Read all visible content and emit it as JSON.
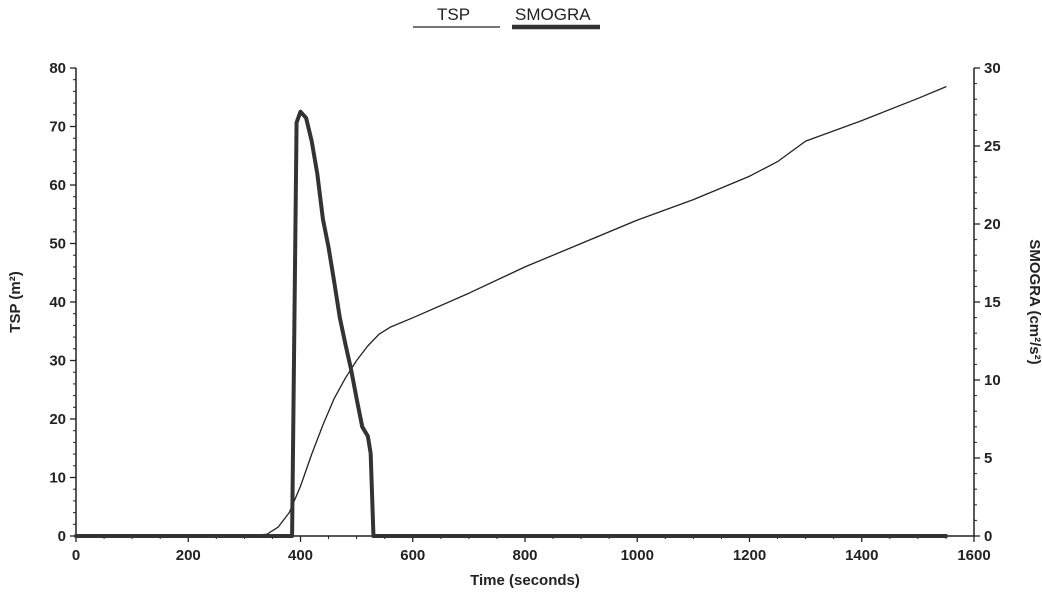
{
  "chart_data": {
    "type": "line",
    "x_axis": {
      "label": "Time (seconds)",
      "range": [
        0,
        1600
      ],
      "ticks": [
        "0",
        "200",
        "400",
        "600",
        "800",
        "1000",
        "1200",
        "1400",
        "1600"
      ]
    },
    "y_axis_left": {
      "label": "TSP (m²)",
      "range": [
        0,
        80
      ],
      "ticks": [
        "0",
        "10",
        "20",
        "30",
        "40",
        "50",
        "60",
        "70",
        "80"
      ]
    },
    "y_axis_right": {
      "label": "SMOGRA (cm²/s²)",
      "range": [
        0,
        30
      ],
      "ticks": [
        "0",
        "5",
        "10",
        "15",
        "20",
        "25",
        "30"
      ]
    },
    "legend": {
      "placement": "top-center",
      "entries": [
        "TSP",
        "SMOGRA"
      ]
    },
    "grid": false,
    "series": [
      {
        "name": "TSP",
        "axis": "left",
        "color": "#222222",
        "points": [
          [
            0,
            0
          ],
          [
            300,
            0
          ],
          [
            340,
            0.3
          ],
          [
            360,
            1.5
          ],
          [
            380,
            4
          ],
          [
            400,
            8.5
          ],
          [
            420,
            14
          ],
          [
            440,
            19
          ],
          [
            460,
            23.5
          ],
          [
            480,
            27
          ],
          [
            500,
            30
          ],
          [
            520,
            32.5
          ],
          [
            540,
            34.5
          ],
          [
            560,
            35.7
          ],
          [
            600,
            37.3
          ],
          [
            700,
            41.5
          ],
          [
            800,
            46
          ],
          [
            900,
            50
          ],
          [
            1000,
            54
          ],
          [
            1100,
            57.5
          ],
          [
            1200,
            61.5
          ],
          [
            1250,
            64
          ],
          [
            1300,
            67.5
          ],
          [
            1400,
            71
          ],
          [
            1500,
            74.8
          ],
          [
            1550,
            76.8
          ]
        ]
      },
      {
        "name": "SMOGRA",
        "axis": "right",
        "color": "#333333",
        "points": [
          [
            0,
            0
          ],
          [
            385,
            0
          ],
          [
            393,
            26.5
          ],
          [
            400,
            27.2
          ],
          [
            410,
            26.8
          ],
          [
            420,
            25.3
          ],
          [
            430,
            23.2
          ],
          [
            440,
            20.3
          ],
          [
            450,
            18.5
          ],
          [
            460,
            16.3
          ],
          [
            470,
            14
          ],
          [
            480,
            12.3
          ],
          [
            490,
            10.7
          ],
          [
            500,
            8.8
          ],
          [
            510,
            7
          ],
          [
            520,
            6.4
          ],
          [
            525,
            5.3
          ],
          [
            530,
            0
          ],
          [
            1550,
            0
          ]
        ]
      }
    ]
  }
}
